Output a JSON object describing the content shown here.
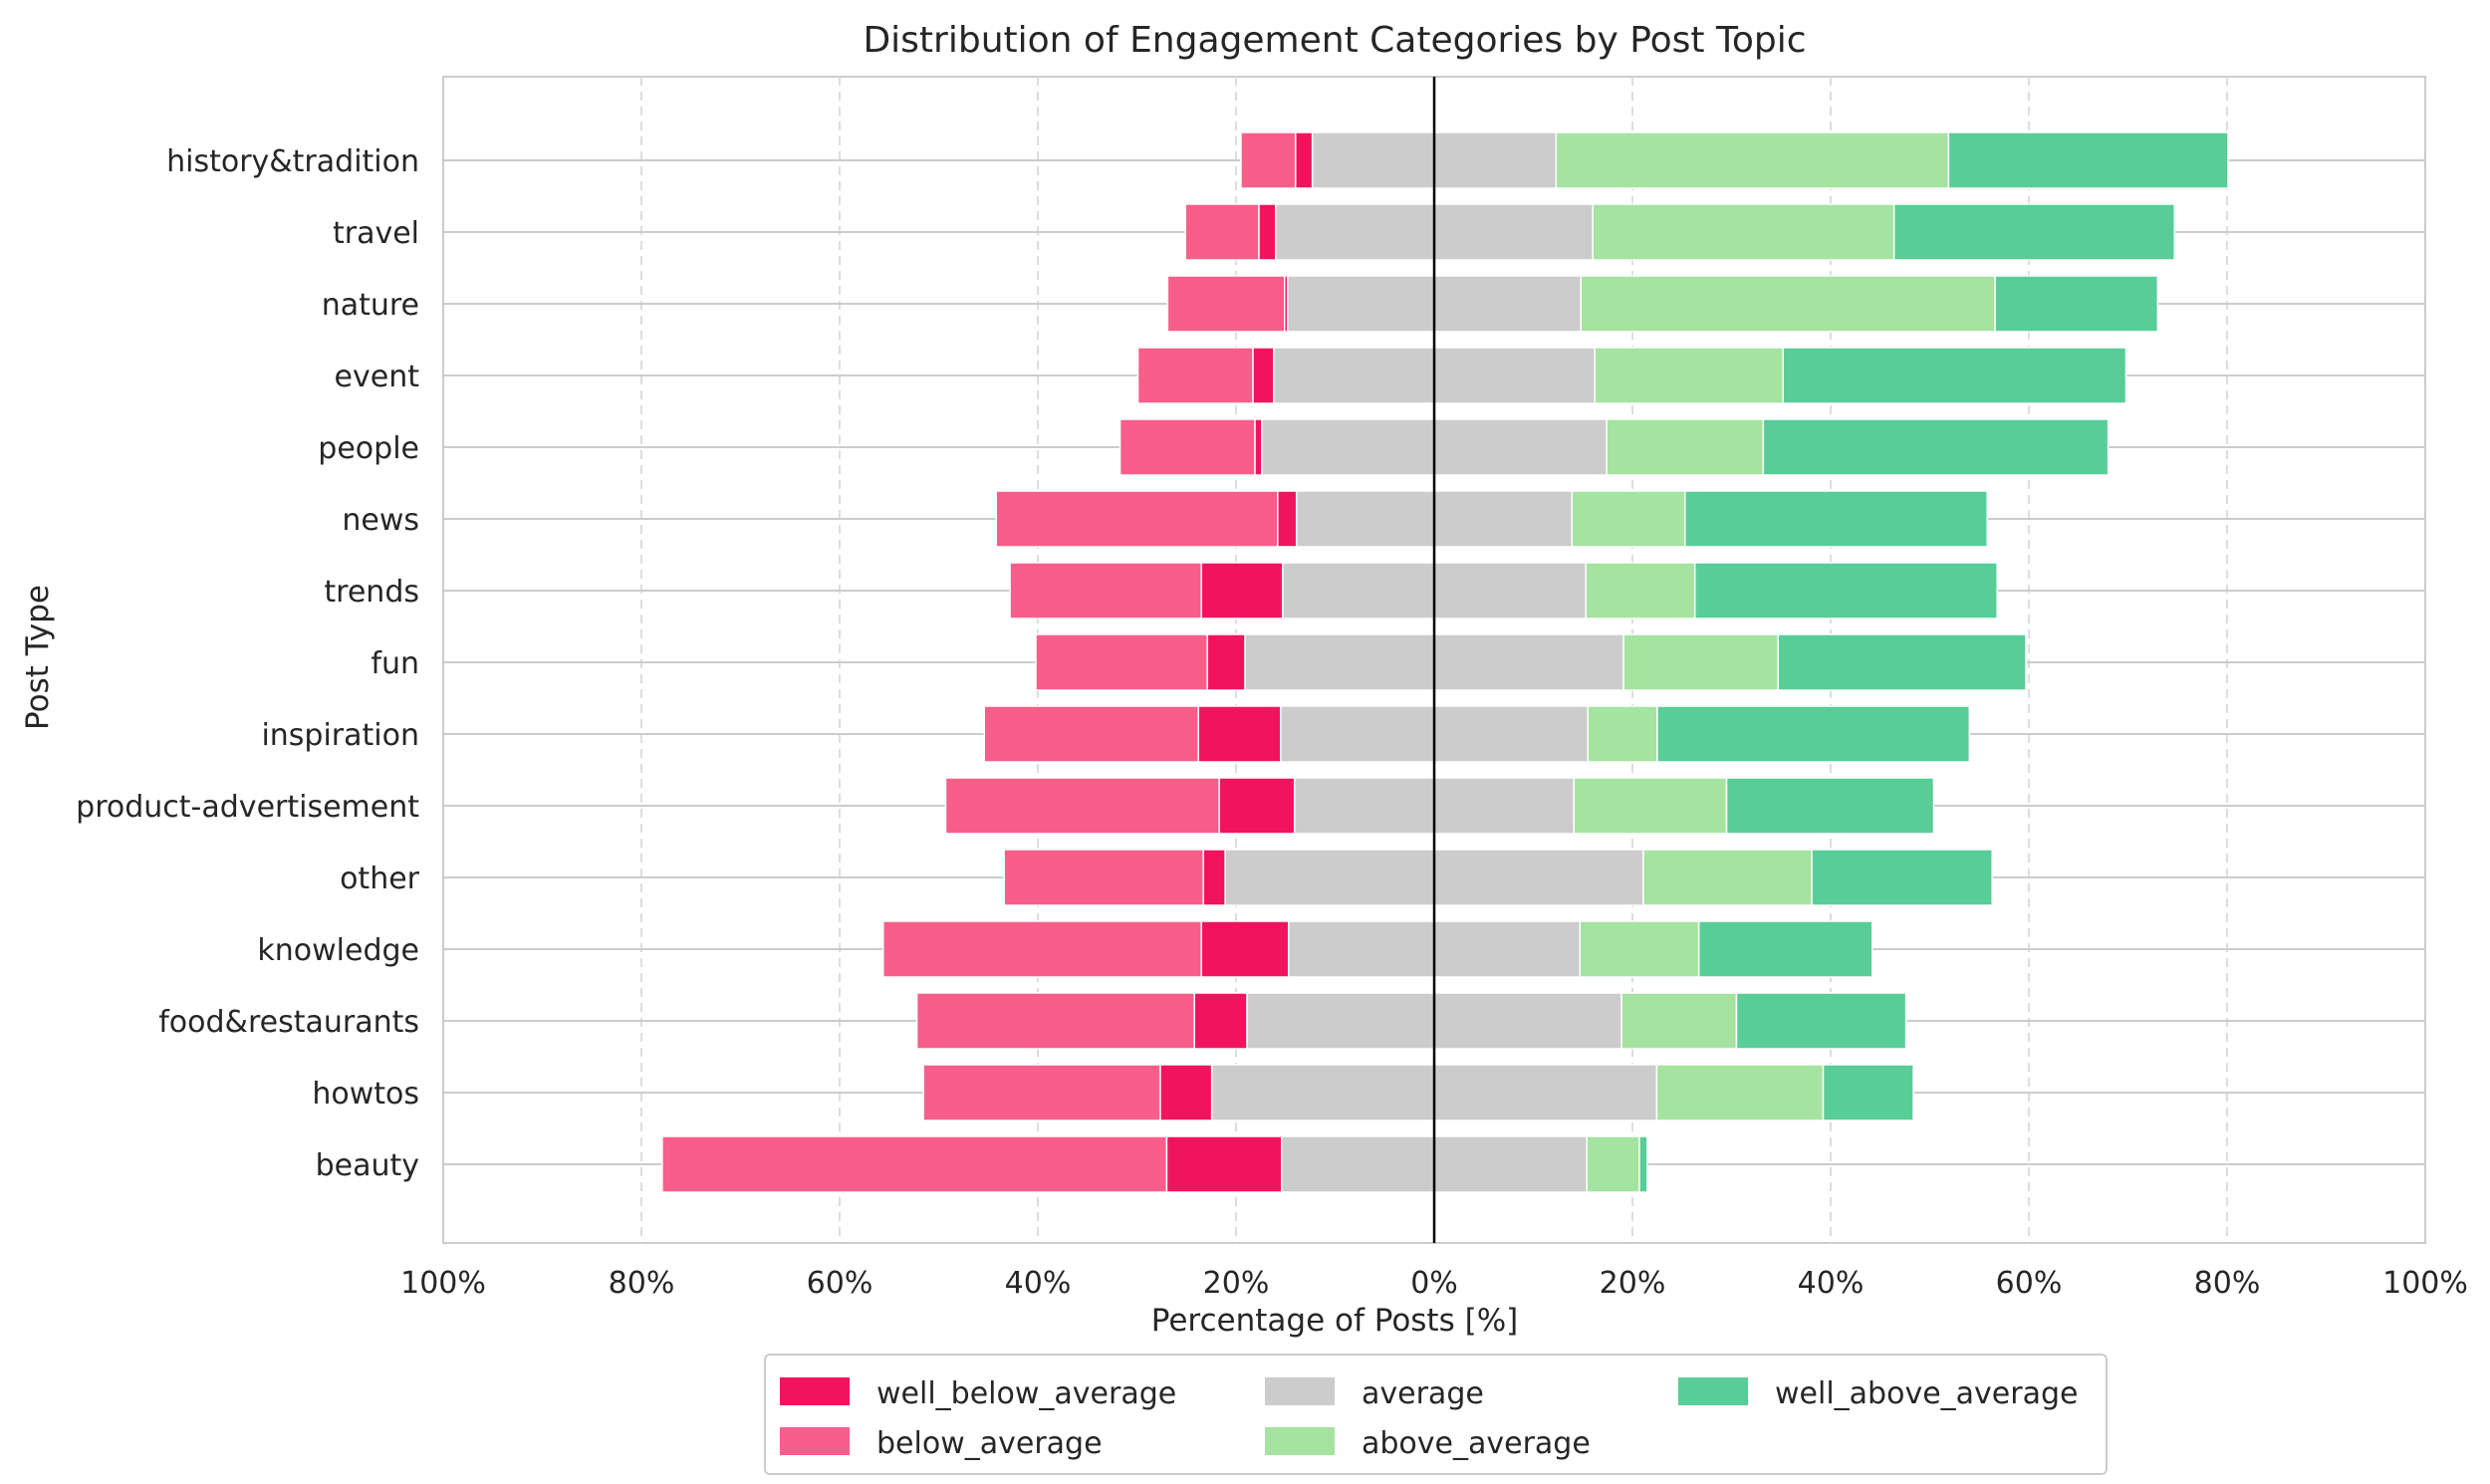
{
  "chart_data": {
    "type": "bar",
    "orientation": "horizontal",
    "stacking": "diverging",
    "title": "Distribution of Engagement Categories by Post Topic",
    "xlabel": "Percentage of Posts [%]",
    "ylabel": "Post Type",
    "xlim": [
      -100,
      100
    ],
    "x_ticks": [
      -100,
      -80,
      -60,
      -40,
      -20,
      0,
      20,
      40,
      60,
      80,
      100
    ],
    "x_tick_labels": [
      "100%",
      "80%",
      "60%",
      "40%",
      "20%",
      "0%",
      "20%",
      "40%",
      "60%",
      "80%",
      "100%"
    ],
    "grid": true,
    "legend_position": "bottom-center",
    "categories": [
      "history&tradition",
      "travel",
      "nature",
      "event",
      "people",
      "news",
      "trends",
      "fun",
      "inspiration",
      "product-advertisement",
      "other",
      "knowledge",
      "food&restaurants",
      "howtos",
      "beauty"
    ],
    "series": [
      {
        "name": "well_below_average",
        "side": "negative",
        "color": "#f0145f",
        "values": [
          1.7,
          1.7,
          0.3,
          2.1,
          0.7,
          1.9,
          8.2,
          3.8,
          8.3,
          7.6,
          2.2,
          8.8,
          5.3,
          5.2,
          11.6
        ]
      },
      {
        "name": "below_average",
        "side": "negative",
        "color": "#f75e8a",
        "values": [
          5.5,
          7.4,
          11.8,
          11.6,
          13.6,
          28.4,
          19.3,
          17.3,
          21.6,
          27.6,
          20.1,
          32.1,
          28.0,
          23.9,
          50.9
        ]
      },
      {
        "name": "average",
        "side": "split",
        "color": "#cccccc",
        "values": [
          24.6,
          32.0,
          29.6,
          32.4,
          34.8,
          27.8,
          30.6,
          38.2,
          31.0,
          28.2,
          42.2,
          29.4,
          37.8,
          44.9,
          30.8
        ]
      },
      {
        "name": "above_average",
        "side": "positive",
        "color": "#a5e3a0",
        "values": [
          39.6,
          30.4,
          41.8,
          19.0,
          15.8,
          11.4,
          11.0,
          15.6,
          7.0,
          15.4,
          17.0,
          12.0,
          11.6,
          16.8,
          5.3
        ]
      },
      {
        "name": "well_above_average",
        "side": "positive",
        "color": "#58cd98",
        "values": [
          28.2,
          28.3,
          16.4,
          34.6,
          34.8,
          30.5,
          30.5,
          25.0,
          31.5,
          20.9,
          18.2,
          17.5,
          17.1,
          9.1,
          0.8
        ]
      }
    ]
  },
  "colors": {
    "grid": "#cccccc",
    "zero_line": "#000000",
    "text": "#262626"
  }
}
